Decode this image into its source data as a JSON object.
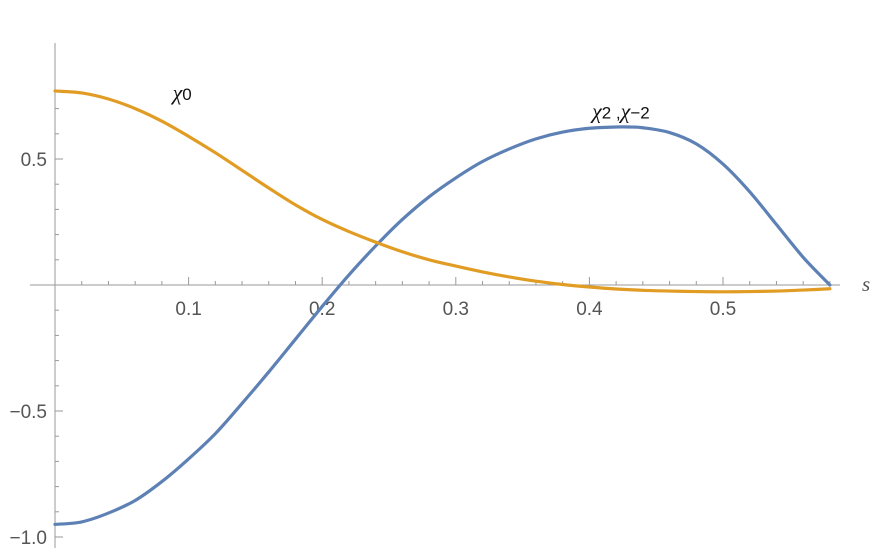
{
  "chart_data": {
    "type": "line",
    "title": "",
    "xlabel": "s",
    "ylabel": "",
    "xlim": [
      0,
      0.58
    ],
    "ylim": [
      -1.0,
      0.77
    ],
    "x_ticks": [
      {
        "value": 0.1,
        "label": "0.1"
      },
      {
        "value": 0.2,
        "label": "0.2"
      },
      {
        "value": 0.3,
        "label": "0.3"
      },
      {
        "value": 0.4,
        "label": "0.4"
      },
      {
        "value": 0.5,
        "label": "0.5"
      }
    ],
    "y_ticks": [
      {
        "value": 0.5,
        "label": "0.5"
      },
      {
        "value": -0.5,
        "label": "−0.5"
      },
      {
        "value": -1.0,
        "label": "−1.0"
      }
    ],
    "grid": false,
    "series": [
      {
        "name": "χ0",
        "color": "#E19C24",
        "x": [
          0,
          0.02,
          0.04,
          0.06,
          0.08,
          0.1,
          0.12,
          0.14,
          0.16,
          0.18,
          0.2,
          0.22,
          0.24,
          0.26,
          0.28,
          0.3,
          0.32,
          0.34,
          0.36,
          0.38,
          0.4,
          0.42,
          0.44,
          0.46,
          0.48,
          0.5,
          0.52,
          0.54,
          0.56,
          0.58
        ],
        "y": [
          0.77,
          0.762,
          0.738,
          0.7,
          0.65,
          0.59,
          0.525,
          0.455,
          0.385,
          0.318,
          0.26,
          0.212,
          0.17,
          0.132,
          0.1,
          0.075,
          0.052,
          0.032,
          0.015,
          0.002,
          -0.008,
          -0.016,
          -0.021,
          -0.024,
          -0.026,
          -0.027,
          -0.026,
          -0.024,
          -0.02,
          -0.015
        ]
      },
      {
        "name": "χ2 ,χ−2",
        "color": "#5E81B5",
        "x": [
          0,
          0.02,
          0.04,
          0.06,
          0.08,
          0.1,
          0.12,
          0.14,
          0.16,
          0.18,
          0.2,
          0.22,
          0.24,
          0.26,
          0.28,
          0.3,
          0.32,
          0.34,
          0.36,
          0.38,
          0.4,
          0.42,
          0.43,
          0.44,
          0.46,
          0.48,
          0.5,
          0.52,
          0.54,
          0.56,
          0.58
        ],
        "y": [
          -0.95,
          -0.94,
          -0.905,
          -0.855,
          -0.78,
          -0.69,
          -0.59,
          -0.47,
          -0.345,
          -0.215,
          -0.085,
          0.04,
          0.155,
          0.26,
          0.35,
          0.425,
          0.49,
          0.54,
          0.58,
          0.607,
          0.622,
          0.627,
          0.627,
          0.624,
          0.605,
          0.56,
          0.48,
          0.37,
          0.24,
          0.11,
          0.0
        ]
      }
    ],
    "annotations": [
      {
        "series": 0,
        "base": "χ",
        "sub": "0",
        "x": 0.088,
        "y": 0.735
      },
      {
        "series": 1,
        "base": "χ",
        "sub": "2 ,",
        "base2": "χ",
        "sub2": "−2",
        "x": 0.402,
        "y": 0.66
      }
    ]
  }
}
